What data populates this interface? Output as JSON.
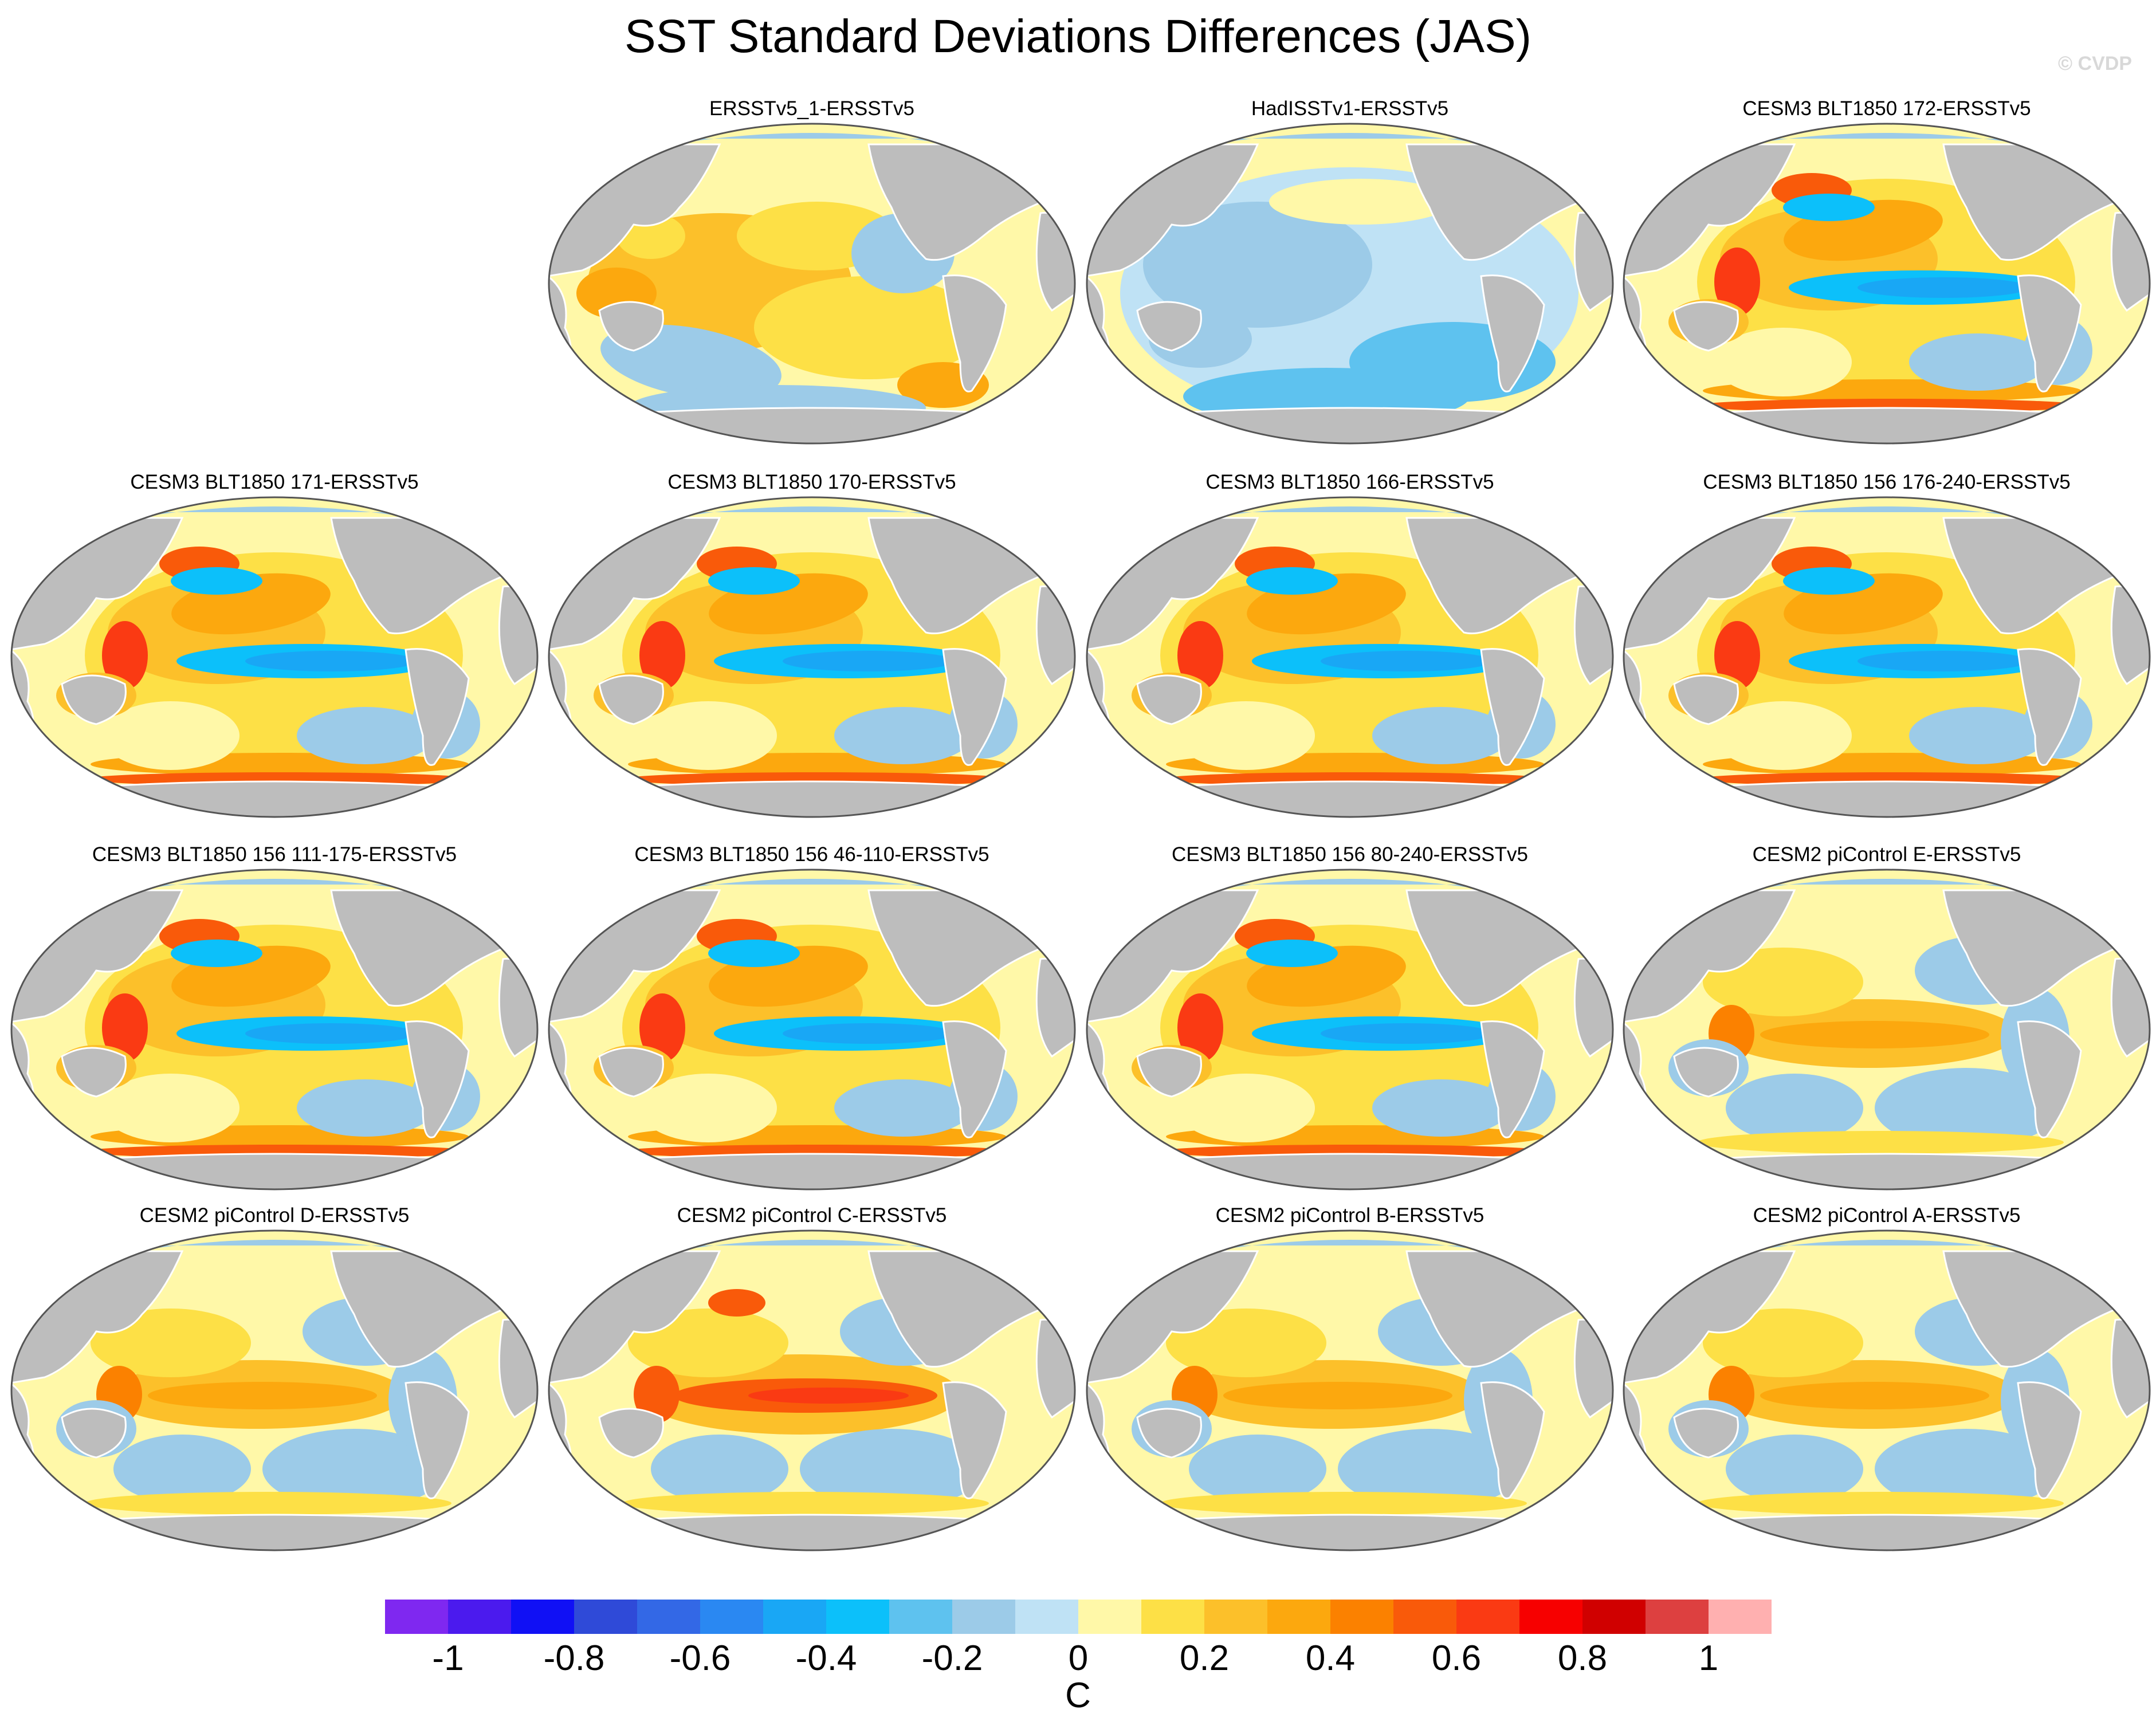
{
  "title": "SST Standard Deviations Differences (JAS)",
  "copyright": "© CVDP",
  "colors": {
    "land": "#bdbdbd",
    "ocean_zero": "#fff8a8",
    "coast": "#ffffff",
    "border": "#555555"
  },
  "panels": [
    {
      "label": "ERSSTv5_1-ERSSTv5",
      "pattern": "noise"
    },
    {
      "label": "HadISSTv1-ERSSTv5",
      "pattern": "cool"
    },
    {
      "label": "CESM3 BLT1850 172-ERSSTv5",
      "pattern": "blt"
    },
    {
      "label": "CESM3 BLT1850 171-ERSSTv5",
      "pattern": "blt"
    },
    {
      "label": "CESM3 BLT1850 170-ERSSTv5",
      "pattern": "blt"
    },
    {
      "label": "CESM3 BLT1850 166-ERSSTv5",
      "pattern": "blt"
    },
    {
      "label": "CESM3 BLT1850 156 176-240-ERSSTv5",
      "pattern": "blt"
    },
    {
      "label": "CESM3 BLT1850 156 111-175-ERSSTv5",
      "pattern": "blt"
    },
    {
      "label": "CESM3 BLT1850 156 46-110-ERSSTv5",
      "pattern": "blt"
    },
    {
      "label": "CESM3 BLT1850 156 80-240-ERSSTv5",
      "pattern": "blt"
    },
    {
      "label": "CESM2 piControl E-ERSSTv5",
      "pattern": "cesm2"
    },
    {
      "label": "CESM2 piControl D-ERSSTv5",
      "pattern": "cesm2"
    },
    {
      "label": "CESM2 piControl C-ERSSTv5",
      "pattern": "cesm2strong"
    },
    {
      "label": "CESM2 piControl B-ERSSTv5",
      "pattern": "cesm2"
    },
    {
      "label": "CESM2 piControl A-ERSSTv5",
      "pattern": "cesm2"
    }
  ],
  "colorbar": {
    "unit": "C",
    "colors": [
      "#7f28f0",
      "#4b1aee",
      "#1010f5",
      "#2f4ad8",
      "#3368e6",
      "#2a88f2",
      "#19a7f5",
      "#0cc0fa",
      "#5ec2ef",
      "#9ccbe8",
      "#bfe2f5",
      "#fff8a8",
      "#fde046",
      "#fcc02a",
      "#fca80e",
      "#fb8100",
      "#f95a0a",
      "#fa3a13",
      "#f70000",
      "#d00000",
      "#dd4040",
      "#ffb0b0"
    ],
    "ticks": [
      "-1",
      "-0.8",
      "-0.6",
      "-0.4",
      "-0.2",
      "0",
      "0.2",
      "0.4",
      "0.6",
      "0.8",
      "1"
    ]
  }
}
